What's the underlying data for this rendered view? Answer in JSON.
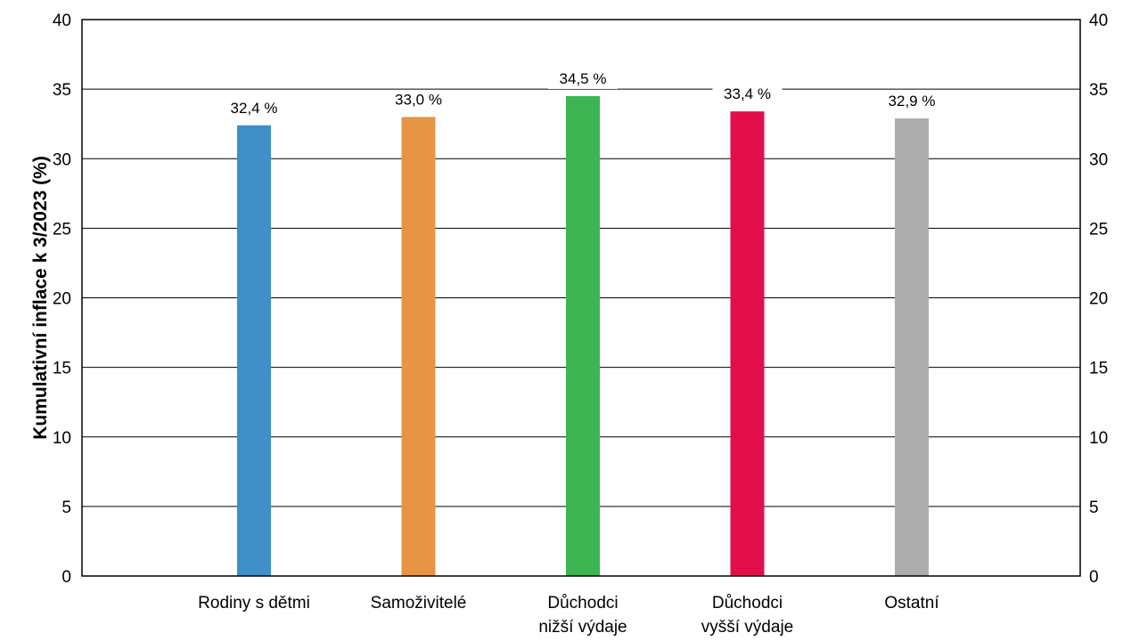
{
  "chart_data": {
    "type": "bar",
    "categories": [
      [
        "Rodiny s dětmi"
      ],
      [
        "Samoživitelé"
      ],
      [
        "Důchodci",
        "nižší výdaje"
      ],
      [
        "Důchodci",
        "vyšší výdaje"
      ],
      [
        "Ostatní"
      ]
    ],
    "values": [
      32.4,
      33.0,
      34.5,
      33.4,
      32.9
    ],
    "value_labels": [
      "32,4 %",
      "33,0 %",
      "34,5 %",
      "33,4 %",
      "32,9 %"
    ],
    "colors": [
      "#3f8fc8",
      "#e69545",
      "#3db553",
      "#e20e4c",
      "#adadad"
    ],
    "ylabel": "Kumulativní inflace k 3/2023 (%)",
    "ylim": [
      0,
      40
    ],
    "yticks": [
      0,
      5,
      10,
      15,
      20,
      25,
      30,
      35,
      40
    ],
    "secondary_y_axis": true,
    "grid": "horizontal",
    "legend": "none"
  }
}
